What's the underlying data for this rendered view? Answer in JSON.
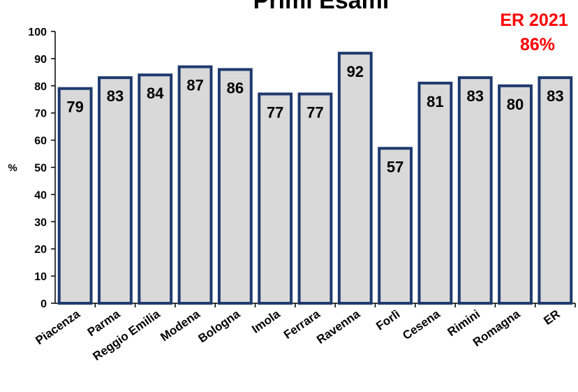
{
  "chart_data": {
    "type": "bar",
    "title": "Primi Esami",
    "ylabel": "%",
    "xlabel": "",
    "categories": [
      "Piacenza",
      "Parma",
      "Reggio Emilia",
      "Modena",
      "Bologna",
      "Imola",
      "Ferrara",
      "Ravenna",
      "Forlì",
      "Cesena",
      "Rimini",
      "Romagna",
      "ER"
    ],
    "values": [
      79,
      83,
      84,
      87,
      86,
      77,
      77,
      92,
      57,
      81,
      83,
      80,
      83
    ],
    "ylim": [
      0,
      100
    ],
    "yticks": [
      "0",
      "10",
      "20",
      "30",
      "40",
      "50",
      "60",
      "70",
      "80",
      "90",
      "100"
    ],
    "grid": false,
    "legend": "none",
    "annotation": [
      "ER 2021",
      "86%"
    ],
    "colors": {
      "bar_fill": "#d9d9d9",
      "bar_stroke": "#1f3a6e",
      "axis": "#000000",
      "annotation": "#ff0000"
    }
  }
}
